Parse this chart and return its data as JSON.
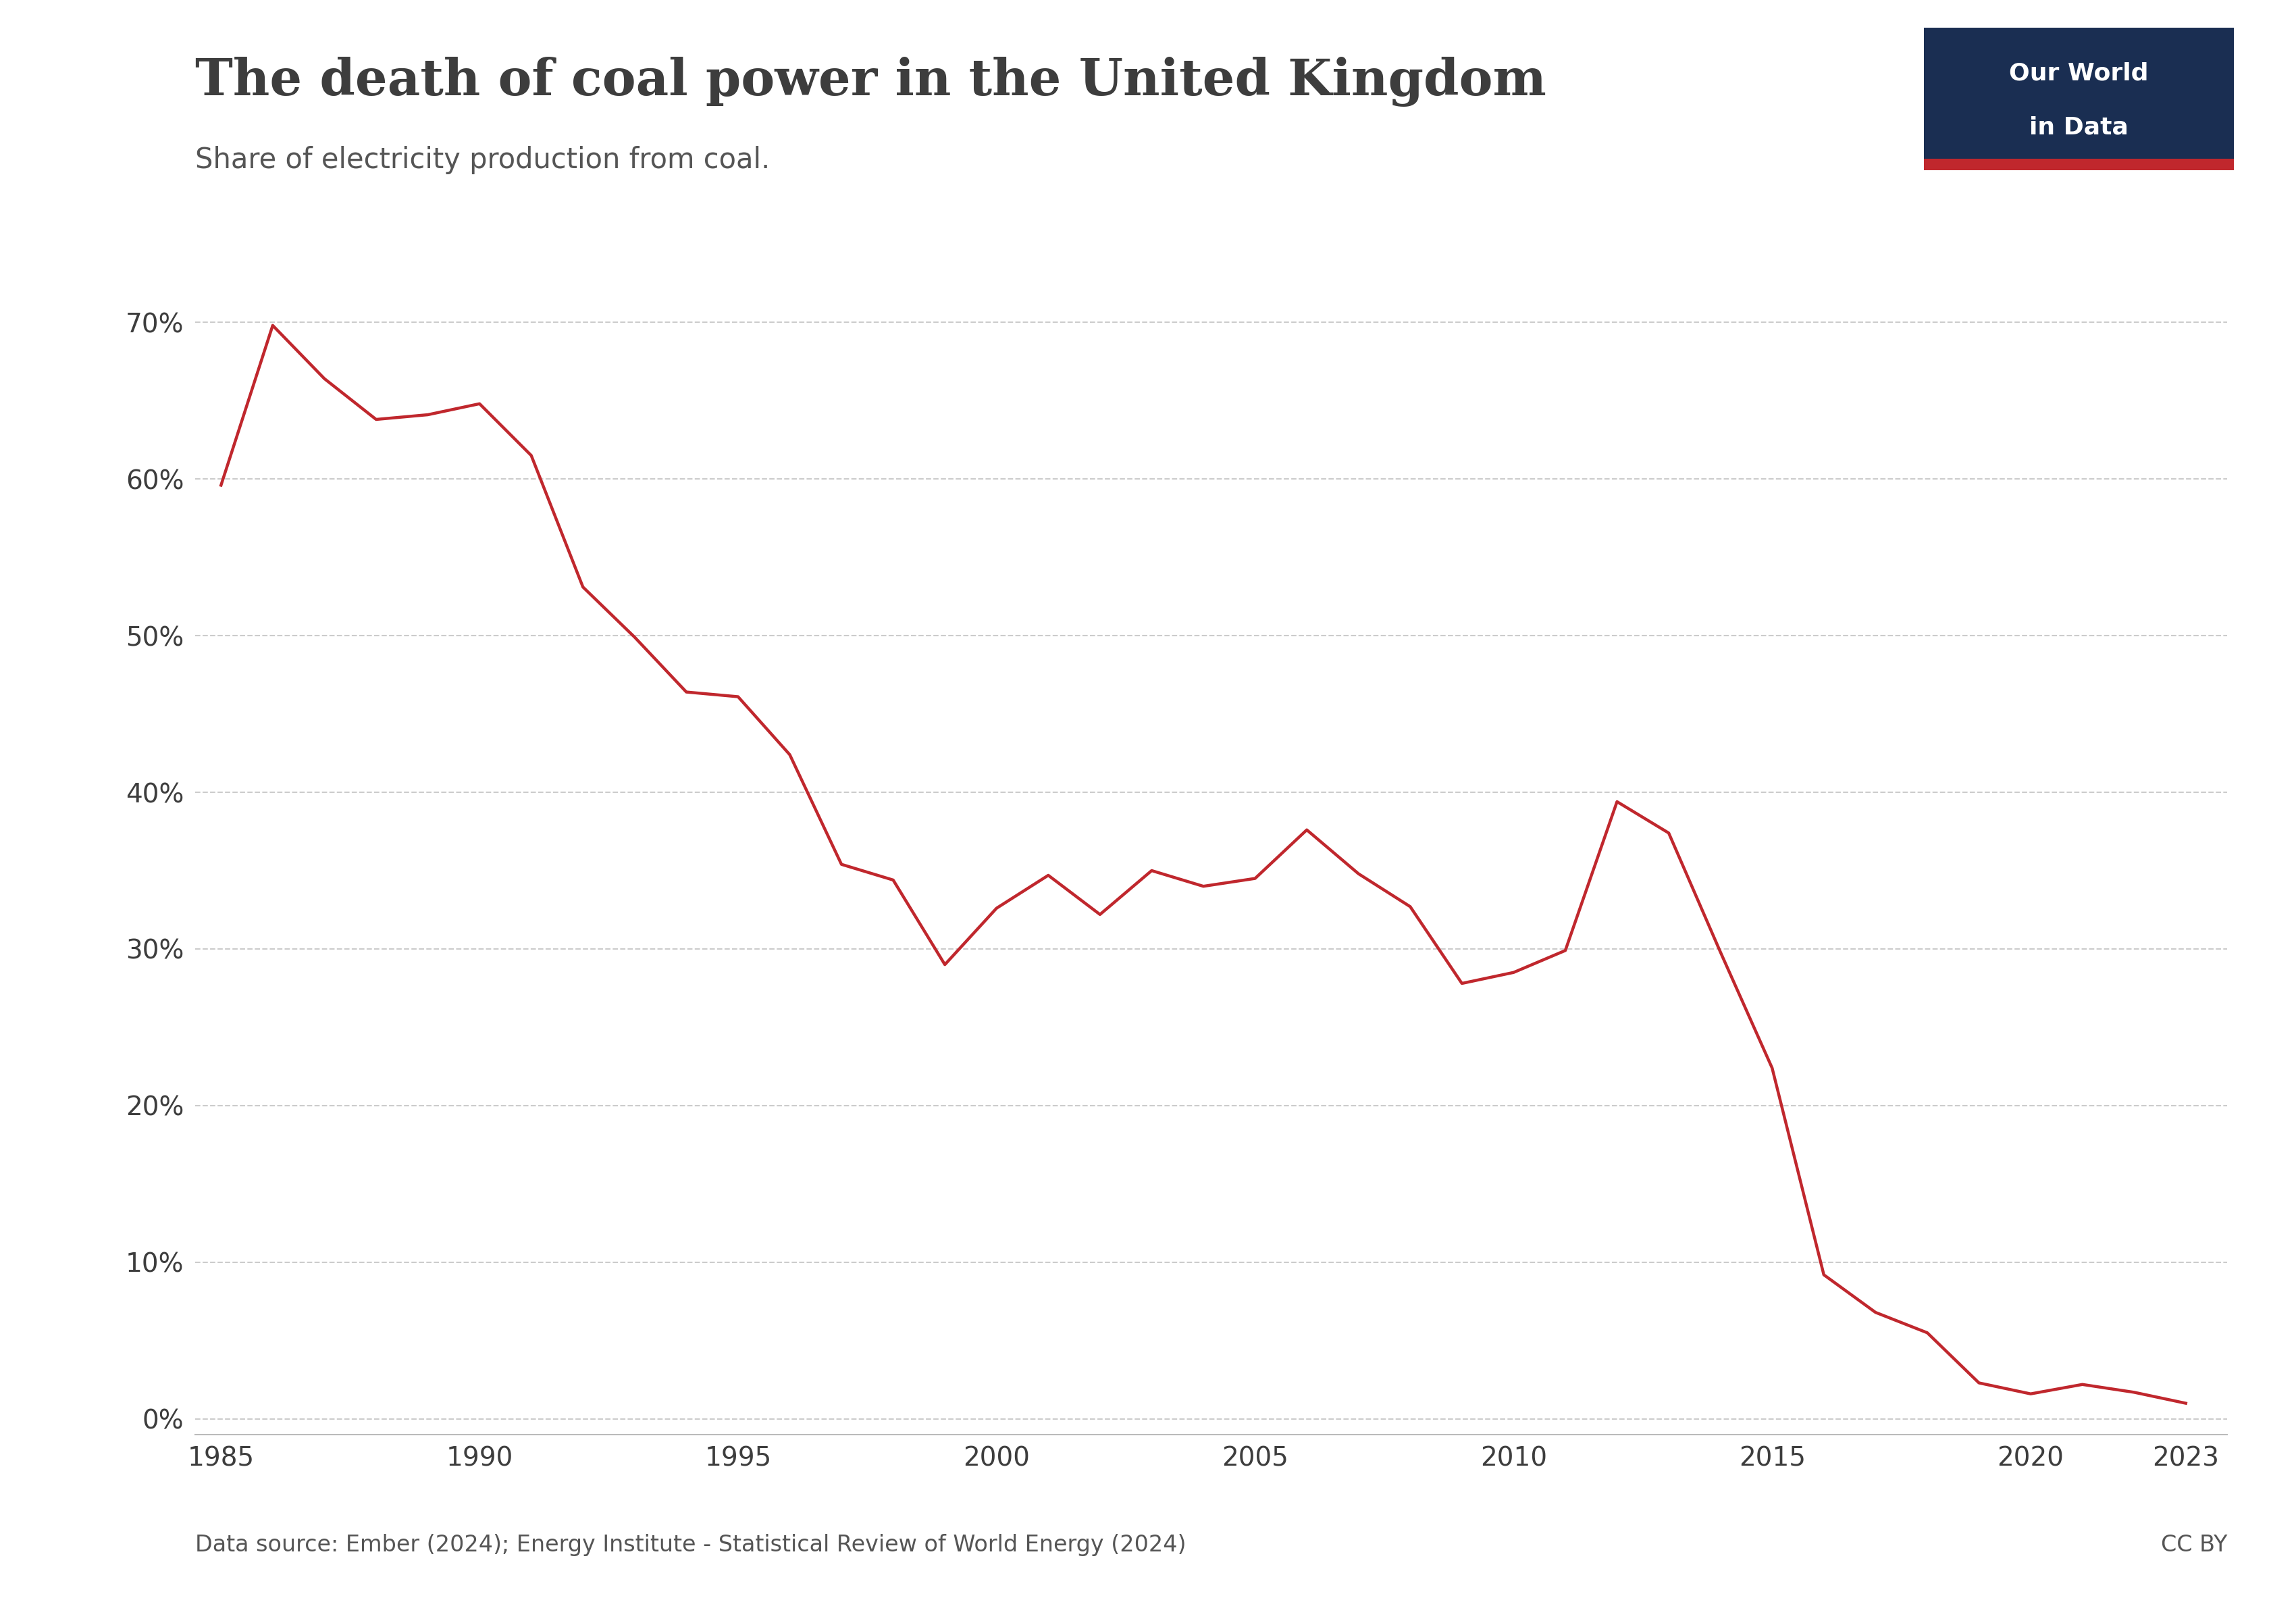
{
  "title": "The death of coal power in the United Kingdom",
  "subtitle": "Share of electricity production from coal.",
  "source_text": "Data source: Ember (2024); Energy Institute - Statistical Review of World Energy (2024)",
  "cc_text": "CC BY",
  "logo_line1": "Our World",
  "logo_line2": "in Data",
  "logo_bg_color": "#1a2e52",
  "logo_accent_color": "#c0272d",
  "line_color": "#c0272d",
  "background_color": "#ffffff",
  "title_color": "#3d3d3d",
  "subtitle_color": "#555555",
  "source_color": "#555555",
  "axis_color": "#3d3d3d",
  "grid_color": "#cccccc",
  "years": [
    1985,
    1986,
    1987,
    1988,
    1989,
    1990,
    1991,
    1992,
    1993,
    1994,
    1995,
    1996,
    1997,
    1998,
    1999,
    2000,
    2001,
    2002,
    2003,
    2004,
    2005,
    2006,
    2007,
    2008,
    2009,
    2010,
    2011,
    2012,
    2013,
    2014,
    2015,
    2016,
    2017,
    2018,
    2019,
    2020,
    2021,
    2022,
    2023
  ],
  "values": [
    0.596,
    0.698,
    0.664,
    0.638,
    0.641,
    0.648,
    0.615,
    0.531,
    0.499,
    0.464,
    0.461,
    0.424,
    0.354,
    0.344,
    0.29,
    0.326,
    0.347,
    0.322,
    0.35,
    0.34,
    0.345,
    0.376,
    0.348,
    0.327,
    0.278,
    0.285,
    0.299,
    0.394,
    0.374,
    0.298,
    0.224,
    0.092,
    0.068,
    0.055,
    0.023,
    0.016,
    0.022,
    0.017,
    0.01
  ],
  "yticks": [
    0.0,
    0.1,
    0.2,
    0.3,
    0.4,
    0.5,
    0.6,
    0.7
  ],
  "ytick_labels": [
    "0%",
    "10%",
    "20%",
    "30%",
    "40%",
    "50%",
    "60%",
    "70%"
  ],
  "xticks": [
    1985,
    1990,
    1995,
    2000,
    2005,
    2010,
    2015,
    2020,
    2023
  ],
  "xlim": [
    1984.5,
    2023.8
  ],
  "ylim": [
    -0.01,
    0.735
  ]
}
